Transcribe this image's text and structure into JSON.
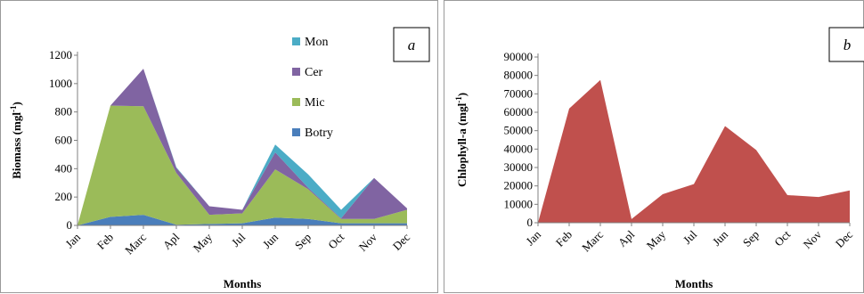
{
  "chart_data": [
    {
      "panel_label": "a",
      "type": "area",
      "stacked": true,
      "categories": [
        "Jan",
        "Feb",
        "Marc",
        "Apl",
        "May",
        "Jul",
        "Jun",
        "Sep",
        "Oct",
        "Nov",
        "Dec"
      ],
      "series": [
        {
          "name": "Botry",
          "color": "#4a7ebb",
          "values": [
            0,
            60,
            75,
            5,
            10,
            15,
            55,
            45,
            15,
            15,
            15
          ]
        },
        {
          "name": "Mic",
          "color": "#9bbb59",
          "values": [
            0,
            785,
            765,
            365,
            65,
            70,
            340,
            210,
            30,
            30,
            95
          ]
        },
        {
          "name": "Cer",
          "color": "#8064a2",
          "values": [
            0,
            0,
            265,
            35,
            60,
            25,
            120,
            10,
            5,
            290,
            10
          ]
        },
        {
          "name": "Mon",
          "color": "#4bacc6",
          "values": [
            0,
            0,
            0,
            5,
            0,
            0,
            55,
            95,
            60,
            0,
            0
          ]
        }
      ],
      "xlabel": "Months",
      "ylabel": "Biomass (mgl-1)",
      "ylabel_main": "Biomass (mgl",
      "ylabel_sup": "-1",
      "ylabel_close": ")",
      "ylim": [
        0,
        1200
      ],
      "yticks": [
        "0",
        "200",
        "400",
        "600",
        "800",
        "1000",
        "1200"
      ],
      "legend_position": "top-right",
      "grid": false
    },
    {
      "panel_label": "b",
      "type": "area",
      "categories": [
        "Jan",
        "Feb",
        "Marc",
        "Apl",
        "May",
        "Jul",
        "Jun",
        "Sep",
        "Oct",
        "Nov",
        "Dec"
      ],
      "series": [
        {
          "color": "#c0504d",
          "values": [
            0,
            62000,
            77500,
            2000,
            15500,
            21000,
            52500,
            39500,
            15000,
            14000,
            17500
          ]
        }
      ],
      "xlabel": "Months",
      "ylabel": "Chlophyll-a (mgl-1)",
      "ylabel_main": "Chlophyll-a (mgl",
      "ylabel_sup": "-1",
      "ylabel_close": ")",
      "ylim": [
        0,
        90000
      ],
      "yticks": [
        "0",
        "10000",
        "20000",
        "30000",
        "40000",
        "50000",
        "60000",
        "70000",
        "80000",
        "90000"
      ],
      "grid": false
    }
  ]
}
